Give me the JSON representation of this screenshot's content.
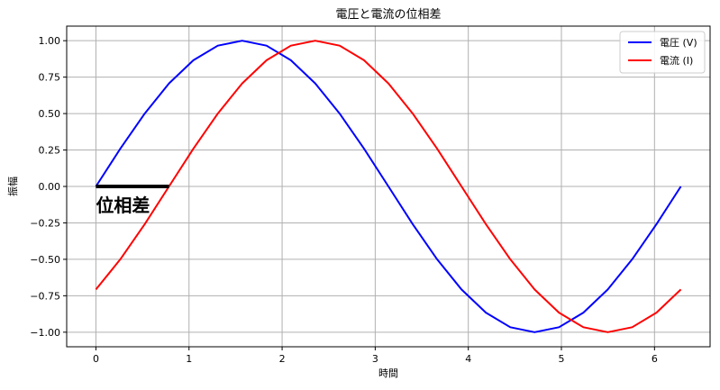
{
  "chart_data": {
    "type": "line",
    "title": "電圧と電流の位相差",
    "xlabel": "時間",
    "ylabel": "振幅",
    "xlim": [
      -0.314,
      6.597
    ],
    "ylim": [
      -1.1,
      1.1
    ],
    "xticks": [
      0,
      1,
      2,
      3,
      4,
      5,
      6
    ],
    "yticks": [
      -1.0,
      -0.75,
      -0.5,
      -0.25,
      0.0,
      0.25,
      0.5,
      0.75,
      1.0
    ],
    "xtick_labels": [
      "0",
      "1",
      "2",
      "3",
      "4",
      "5",
      "6"
    ],
    "ytick_labels": [
      "−1.00",
      "−0.75",
      "−0.50",
      "−0.25",
      "0.00",
      "0.25",
      "0.50",
      "0.75",
      "1.00"
    ],
    "grid": true,
    "legend_position": "top-right",
    "series": [
      {
        "name": "電圧 (V)",
        "color": "#0000ff",
        "x": [
          0,
          0.262,
          0.524,
          0.785,
          1.047,
          1.309,
          1.571,
          1.833,
          2.094,
          2.356,
          2.618,
          2.88,
          3.142,
          3.403,
          3.665,
          3.927,
          4.189,
          4.451,
          4.712,
          4.974,
          5.236,
          5.498,
          5.76,
          6.021,
          6.283
        ],
        "y": [
          0,
          0.259,
          0.5,
          0.707,
          0.866,
          0.966,
          1,
          0.966,
          0.866,
          0.707,
          0.5,
          0.259,
          0,
          -0.259,
          -0.5,
          -0.707,
          -0.866,
          -0.966,
          -1,
          -0.966,
          -0.866,
          -0.707,
          -0.5,
          -0.259,
          0
        ]
      },
      {
        "name": "電流 (I)",
        "color": "#ff0000",
        "x": [
          0,
          0.262,
          0.524,
          0.785,
          1.047,
          1.309,
          1.571,
          1.833,
          2.094,
          2.356,
          2.618,
          2.88,
          3.142,
          3.403,
          3.665,
          3.927,
          4.189,
          4.451,
          4.712,
          4.974,
          5.236,
          5.498,
          5.76,
          6.021,
          6.283
        ],
        "y": [
          -0.707,
          -0.5,
          -0.259,
          0,
          0.259,
          0.5,
          0.707,
          0.866,
          0.966,
          1,
          0.966,
          0.866,
          0.707,
          0.5,
          0.259,
          0,
          -0.259,
          -0.5,
          -0.707,
          -0.866,
          -0.966,
          -1,
          -0.966,
          -0.866,
          -0.707
        ]
      }
    ],
    "annotation": {
      "text": "位相差",
      "x_start": 0,
      "x_end": 0.785,
      "y": 0
    }
  }
}
